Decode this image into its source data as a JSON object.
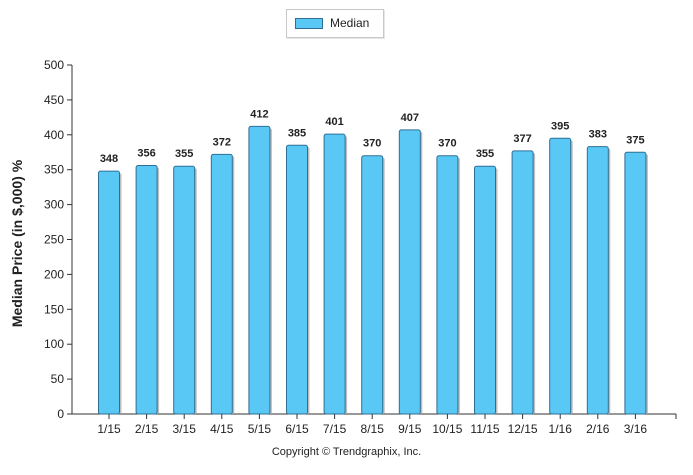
{
  "chart_data": {
    "type": "bar",
    "categories": [
      "1/15",
      "2/15",
      "3/15",
      "4/15",
      "5/15",
      "6/15",
      "7/15",
      "8/15",
      "9/15",
      "10/15",
      "11/15",
      "12/15",
      "1/16",
      "2/16",
      "3/16"
    ],
    "series": [
      {
        "name": "Median",
        "values": [
          348,
          356,
          355,
          372,
          412,
          385,
          401,
          370,
          407,
          370,
          355,
          377,
          395,
          383,
          375
        ]
      }
    ],
    "ylabel": "Median Price (in $,000) %",
    "xlabel": "",
    "ylim": [
      0,
      500
    ],
    "yticks": [
      0,
      50,
      100,
      150,
      200,
      250,
      300,
      350,
      400,
      450,
      500
    ],
    "grid": false,
    "legend_position": "top-center",
    "bar_color": "#5ac8f5",
    "bar_edge_color": "#2f6f96"
  },
  "legend": {
    "label": "Median"
  },
  "footer": {
    "copyright": "Copyright © Trendgraphix, Inc."
  }
}
